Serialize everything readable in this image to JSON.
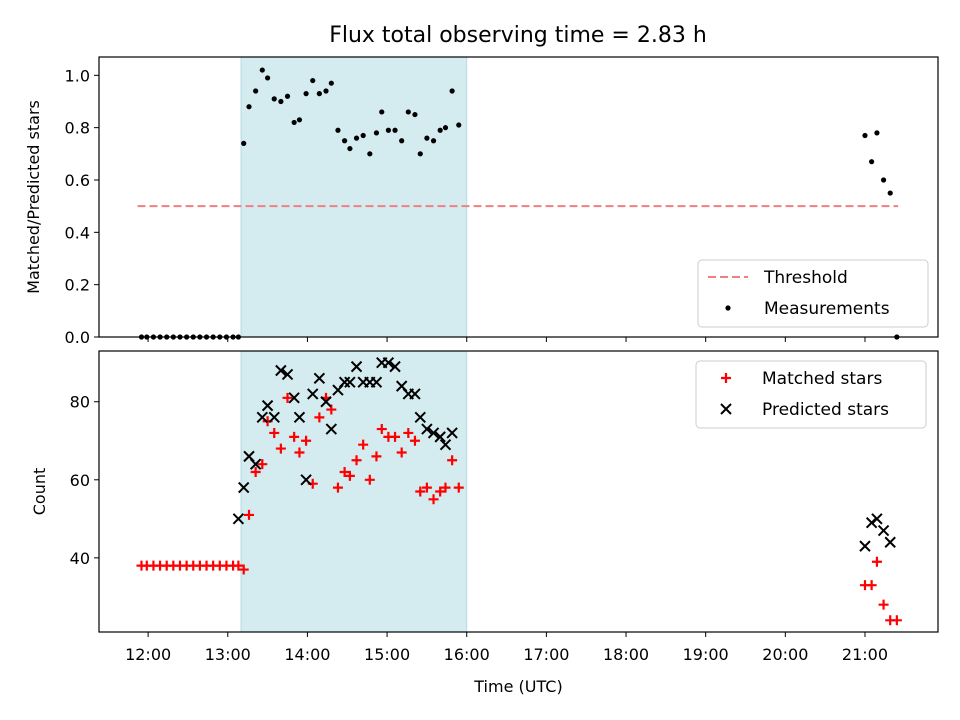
{
  "title": "Flux total observing time = 2.83 h",
  "chart_data": [
    {
      "type": "scatter",
      "panel": "top",
      "ylabel": "Matched/Predicted stars",
      "ylim": [
        0,
        1.07
      ],
      "yticks": [
        0.0,
        0.2,
        0.4,
        0.6,
        0.8,
        1.0
      ],
      "ytick_labels": [
        "0.0",
        "0.2",
        "0.4",
        "0.6",
        "0.8",
        "1.0"
      ],
      "shaded_span": {
        "x": [
          "13:10",
          "16:00"
        ],
        "color": "#d4ebf0"
      },
      "legend": {
        "placement": "lower-right",
        "entries": [
          "Threshold",
          "Measurements"
        ]
      },
      "threshold": {
        "name": "Threshold",
        "x": [
          "11:52",
          "21:25"
        ],
        "y": 0.5,
        "color": "#f08080",
        "style": "dashed"
      },
      "series": [
        {
          "name": "Measurements",
          "marker": "dot",
          "color": "#000000",
          "points": [
            [
              "11:55",
              0
            ],
            [
              "11:59",
              0
            ],
            [
              "12:04",
              0
            ],
            [
              "12:09",
              0
            ],
            [
              "12:14",
              0
            ],
            [
              "12:19",
              0
            ],
            [
              "12:24",
              0
            ],
            [
              "12:29",
              0
            ],
            [
              "12:34",
              0
            ],
            [
              "12:39",
              0
            ],
            [
              "12:44",
              0
            ],
            [
              "12:49",
              0
            ],
            [
              "12:54",
              0
            ],
            [
              "12:59",
              0
            ],
            [
              "13:04",
              0
            ],
            [
              "13:08",
              0
            ],
            [
              "13:12",
              0.74
            ],
            [
              "13:16",
              0.88
            ],
            [
              "13:21",
              0.94
            ],
            [
              "13:26",
              1.02
            ],
            [
              "13:30",
              0.99
            ],
            [
              "13:35",
              0.91
            ],
            [
              "13:40",
              0.9
            ],
            [
              "13:45",
              0.92
            ],
            [
              "13:50",
              0.82
            ],
            [
              "13:54",
              0.83
            ],
            [
              "13:59",
              0.93
            ],
            [
              "14:04",
              0.98
            ],
            [
              "14:09",
              0.93
            ],
            [
              "14:14",
              0.94
            ],
            [
              "14:18",
              0.97
            ],
            [
              "14:23",
              0.79
            ],
            [
              "14:28",
              0.75
            ],
            [
              "14:32",
              0.72
            ],
            [
              "14:37",
              0.76
            ],
            [
              "14:42",
              0.77
            ],
            [
              "14:47",
              0.7
            ],
            [
              "14:52",
              0.78
            ],
            [
              "14:56",
              0.86
            ],
            [
              "15:01",
              0.79
            ],
            [
              "15:06",
              0.79
            ],
            [
              "15:11",
              0.75
            ],
            [
              "15:16",
              0.86
            ],
            [
              "15:21",
              0.85
            ],
            [
              "15:25",
              0.7
            ],
            [
              "15:30",
              0.76
            ],
            [
              "15:35",
              0.75
            ],
            [
              "15:40",
              0.79
            ],
            [
              "15:44",
              0.8
            ],
            [
              "15:49",
              0.94
            ],
            [
              "15:54",
              0.81
            ],
            [
              "21:00",
              0.77
            ],
            [
              "21:05",
              0.67
            ],
            [
              "21:09",
              0.78
            ],
            [
              "21:14",
              0.6
            ],
            [
              "21:19",
              0.55
            ],
            [
              "21:24",
              0.0
            ]
          ]
        }
      ]
    },
    {
      "type": "scatter",
      "panel": "bottom",
      "xlabel": "Time (UTC)",
      "ylabel": "Count",
      "ylim": [
        21,
        93
      ],
      "yticks": [
        40,
        60,
        80
      ],
      "ytick_labels": [
        "40",
        "60",
        "80"
      ],
      "xlim": [
        "11:23",
        "21:55"
      ],
      "xticks": [
        "12:00",
        "13:00",
        "14:00",
        "15:00",
        "16:00",
        "17:00",
        "18:00",
        "19:00",
        "20:00",
        "21:00"
      ],
      "xtick_labels": [
        "12:00",
        "13:00",
        "14:00",
        "15:00",
        "16:00",
        "17:00",
        "18:00",
        "19:00",
        "20:00",
        "21:00"
      ],
      "shaded_span": {
        "x": [
          "13:10",
          "16:00"
        ],
        "color": "#d4ebf0"
      },
      "legend": {
        "placement": "top-right",
        "entries": [
          "Matched stars",
          "Predicted stars"
        ]
      },
      "series": [
        {
          "name": "Matched stars",
          "marker": "plus",
          "color": "#ff0000",
          "points": [
            [
              "11:55",
              38
            ],
            [
              "11:59",
              38
            ],
            [
              "12:04",
              38
            ],
            [
              "12:09",
              38
            ],
            [
              "12:14",
              38
            ],
            [
              "12:19",
              38
            ],
            [
              "12:24",
              38
            ],
            [
              "12:29",
              38
            ],
            [
              "12:34",
              38
            ],
            [
              "12:39",
              38
            ],
            [
              "12:44",
              38
            ],
            [
              "12:49",
              38
            ],
            [
              "12:54",
              38
            ],
            [
              "12:59",
              38
            ],
            [
              "13:04",
              38
            ],
            [
              "13:08",
              38
            ],
            [
              "13:12",
              37
            ],
            [
              "13:16",
              51
            ],
            [
              "13:21",
              62
            ],
            [
              "13:26",
              64
            ],
            [
              "13:30",
              75
            ],
            [
              "13:35",
              72
            ],
            [
              "13:40",
              68
            ],
            [
              "13:45",
              81
            ],
            [
              "13:50",
              71
            ],
            [
              "13:54",
              67
            ],
            [
              "13:59",
              70
            ],
            [
              "14:04",
              59
            ],
            [
              "14:09",
              76
            ],
            [
              "14:14",
              81
            ],
            [
              "14:18",
              78
            ],
            [
              "14:23",
              58
            ],
            [
              "14:28",
              62
            ],
            [
              "14:32",
              61
            ],
            [
              "14:37",
              65
            ],
            [
              "14:42",
              69
            ],
            [
              "14:47",
              60
            ],
            [
              "14:52",
              66
            ],
            [
              "14:56",
              73
            ],
            [
              "15:01",
              71
            ],
            [
              "15:06",
              71
            ],
            [
              "15:11",
              67
            ],
            [
              "15:16",
              72
            ],
            [
              "15:21",
              70
            ],
            [
              "15:25",
              57
            ],
            [
              "15:30",
              58
            ],
            [
              "15:35",
              55
            ],
            [
              "15:40",
              57
            ],
            [
              "15:44",
              58
            ],
            [
              "15:49",
              65
            ],
            [
              "15:54",
              58
            ],
            [
              "21:00",
              33
            ],
            [
              "21:05",
              33
            ],
            [
              "21:09",
              39
            ],
            [
              "21:14",
              28
            ],
            [
              "21:19",
              24
            ],
            [
              "21:24",
              24
            ]
          ]
        },
        {
          "name": "Predicted stars",
          "marker": "x",
          "color": "#000000",
          "points": [
            [
              "13:08",
              50
            ],
            [
              "13:12",
              58
            ],
            [
              "13:16",
              66
            ],
            [
              "13:21",
              64
            ],
            [
              "13:26",
              76
            ],
            [
              "13:30",
              79
            ],
            [
              "13:35",
              76
            ],
            [
              "13:40",
              88
            ],
            [
              "13:45",
              87
            ],
            [
              "13:50",
              81
            ],
            [
              "13:54",
              76
            ],
            [
              "13:59",
              60
            ],
            [
              "14:04",
              82
            ],
            [
              "14:09",
              86
            ],
            [
              "14:14",
              80
            ],
            [
              "14:18",
              73
            ],
            [
              "14:23",
              83
            ],
            [
              "14:28",
              85
            ],
            [
              "14:32",
              85
            ],
            [
              "14:37",
              89
            ],
            [
              "14:42",
              85
            ],
            [
              "14:47",
              85
            ],
            [
              "14:52",
              85
            ],
            [
              "14:56",
              90
            ],
            [
              "15:01",
              90
            ],
            [
              "15:06",
              89
            ],
            [
              "15:11",
              84
            ],
            [
              "15:16",
              82
            ],
            [
              "15:21",
              82
            ],
            [
              "15:25",
              76
            ],
            [
              "15:30",
              73
            ],
            [
              "15:35",
              72
            ],
            [
              "15:40",
              71
            ],
            [
              "15:44",
              69
            ],
            [
              "15:49",
              72
            ],
            [
              "21:00",
              43
            ],
            [
              "21:05",
              49
            ],
            [
              "21:09",
              50
            ],
            [
              "21:14",
              47
            ],
            [
              "21:19",
              44
            ]
          ]
        }
      ]
    }
  ]
}
